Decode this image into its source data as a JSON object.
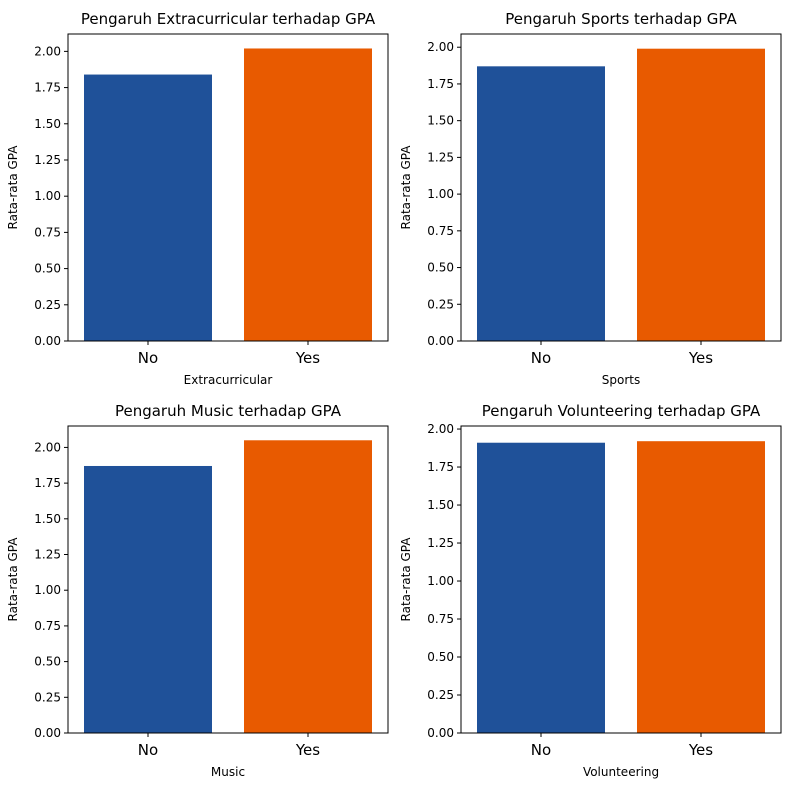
{
  "colors": {
    "no": "#1f5199",
    "yes": "#e85a00",
    "axis": "#000000",
    "background": "#ffffff"
  },
  "chart_data": [
    {
      "type": "bar",
      "title": "Pengaruh Extracurricular terhadap GPA",
      "xlabel": "Extracurricular",
      "ylabel": "Rata-rata GPA",
      "categories": [
        "No",
        "Yes"
      ],
      "values": [
        1.84,
        2.02
      ],
      "ylim": [
        0,
        2.12
      ],
      "yticks": [
        "0.00",
        "0.25",
        "0.50",
        "0.75",
        "1.00",
        "1.25",
        "1.50",
        "1.75",
        "2.00"
      ],
      "grid": false
    },
    {
      "type": "bar",
      "title": "Pengaruh Sports terhadap GPA",
      "xlabel": "Sports",
      "ylabel": "Rata-rata GPA",
      "categories": [
        "No",
        "Yes"
      ],
      "values": [
        1.87,
        1.99
      ],
      "ylim": [
        0,
        2.09
      ],
      "yticks": [
        "0.00",
        "0.25",
        "0.50",
        "0.75",
        "1.00",
        "1.25",
        "1.50",
        "1.75",
        "2.00"
      ],
      "grid": false
    },
    {
      "type": "bar",
      "title": "Pengaruh Music terhadap GPA",
      "xlabel": "Music",
      "ylabel": "Rata-rata GPA",
      "categories": [
        "No",
        "Yes"
      ],
      "values": [
        1.87,
        2.05
      ],
      "ylim": [
        0,
        2.15
      ],
      "yticks": [
        "0.00",
        "0.25",
        "0.50",
        "0.75",
        "1.00",
        "1.25",
        "1.50",
        "1.75",
        "2.00"
      ],
      "grid": false
    },
    {
      "type": "bar",
      "title": "Pengaruh Volunteering terhadap GPA",
      "xlabel": "Volunteering",
      "ylabel": "Rata-rata GPA",
      "categories": [
        "No",
        "Yes"
      ],
      "values": [
        1.91,
        1.92
      ],
      "ylim": [
        0,
        2.02
      ],
      "yticks": [
        "0.00",
        "0.25",
        "0.50",
        "0.75",
        "1.00",
        "1.25",
        "1.50",
        "1.75",
        "2.00"
      ],
      "grid": false
    }
  ]
}
